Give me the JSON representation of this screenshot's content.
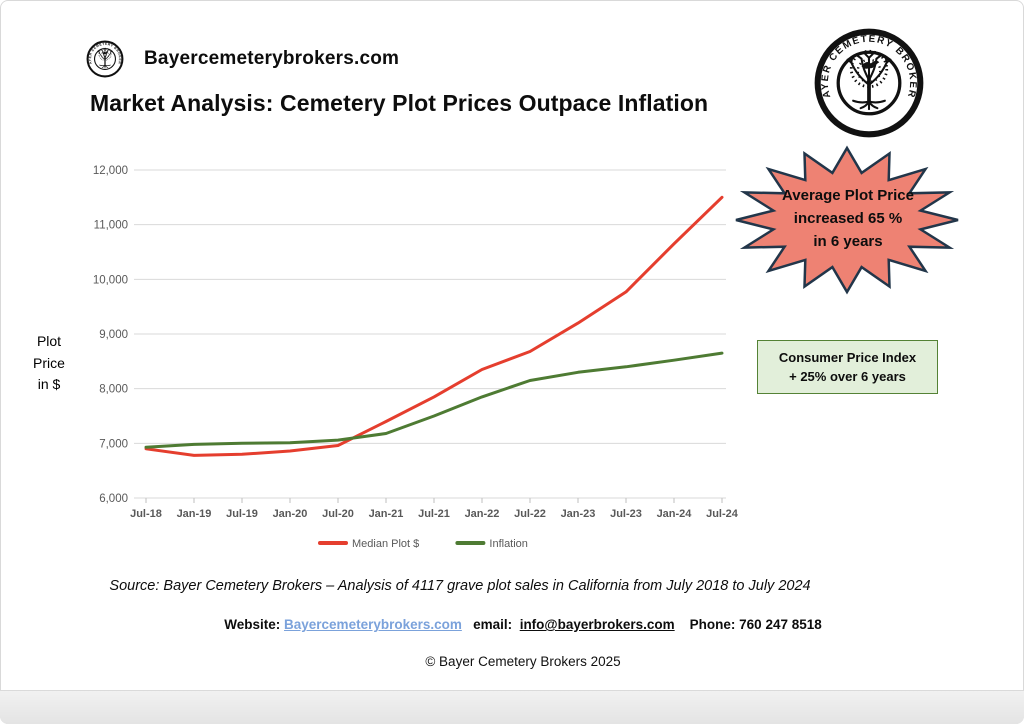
{
  "header": {
    "brand": "Bayercemeterybrokers.com",
    "title": "Market Analysis: Cemetery Plot Prices Outpace Inflation",
    "seal_text": "BAYER CEMETERY BROKERS"
  },
  "badges": {
    "starburst": {
      "lines": [
        "Average Plot Price",
        "increased 65 %",
        "in 6 years"
      ],
      "fill": "#EE8273",
      "border": "#22364A"
    },
    "cpi": {
      "lines": [
        "Consumer Price Index",
        "+ 25% over 6 years"
      ],
      "fill": "#E2EFDA",
      "border": "#548235"
    }
  },
  "chart_data": {
    "type": "line",
    "title": "",
    "xlabel": "",
    "ylabel": "Plot Price in $",
    "ylabel_lines": [
      "Plot",
      "Price",
      "in $"
    ],
    "categories": [
      "Jul-18",
      "Jan-19",
      "Jul-19",
      "Jan-20",
      "Jul-20",
      "Jan-21",
      "Jul-21",
      "Jan-22",
      "Jul-22",
      "Jan-23",
      "Jul-23",
      "Jan-24",
      "Jul-24"
    ],
    "series": [
      {
        "name": "Median Plot $",
        "color": "#E53E2E",
        "values": [
          6900,
          6780,
          6800,
          6860,
          6960,
          7400,
          7850,
          8350,
          8680,
          9200,
          9770,
          10650,
          11500
        ]
      },
      {
        "name": "Inflation",
        "color": "#4E7B33",
        "values": [
          6930,
          6980,
          7000,
          7010,
          7060,
          7180,
          7500,
          7850,
          8150,
          8300,
          8400,
          8520,
          8650
        ]
      }
    ],
    "ylim": [
      6000,
      12000
    ],
    "ytick_step": 1000,
    "grid": true,
    "grid_color": "#D9D9D9",
    "axis_text_color": "#595959",
    "legend_position": "bottom"
  },
  "footer": {
    "source": "Source: Bayer Cemetery Brokers – Analysis of 4117 grave plot sales in California from July 2018 to July 2024",
    "website_label": "Website:",
    "website_link": "Bayercemeterybrokers.com",
    "email_label": "email:",
    "email_link": "info@bayerbrokers.com",
    "phone": "Phone: 760 247 8518",
    "link_color": "#7BA2DB",
    "copyright": "© Bayer Cemetery Brokers 2025"
  }
}
